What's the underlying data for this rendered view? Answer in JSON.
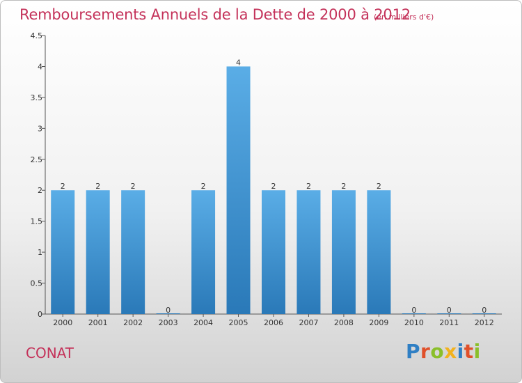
{
  "header": {
    "title": "Remboursements Annuels de la Dette de 2000 à 2012",
    "subtitle": "(en milliers d'€)"
  },
  "footer": {
    "location": "CONAT",
    "logo_text": "Proxiti",
    "logo_colors": [
      "#2f7fc4",
      "#e0502a",
      "#8abf2a",
      "#f2b21e",
      "#2f7fc4",
      "#e0502a",
      "#8abf2a"
    ]
  },
  "colors": {
    "bar_top": "#5aade6",
    "bar_bottom": "#2a79b8",
    "axis": "#555555",
    "grid": "#dddddd"
  },
  "chart_data": {
    "type": "bar",
    "categories": [
      "2000",
      "2001",
      "2002",
      "2003",
      "2004",
      "2005",
      "2006",
      "2007",
      "2008",
      "2009",
      "2010",
      "2011",
      "2012"
    ],
    "values": [
      2,
      2,
      2,
      0,
      2,
      4,
      2,
      2,
      2,
      2,
      0,
      0,
      0
    ],
    "data_labels": [
      "2",
      "2",
      "2",
      "0",
      "2",
      "4",
      "2",
      "2",
      "2",
      "2",
      "0",
      "0",
      "0"
    ],
    "yticks": [
      0,
      0.5,
      1,
      1.5,
      2,
      2.5,
      3,
      3.5,
      4,
      4.5
    ],
    "ytick_labels": [
      "0",
      "0.5",
      "1",
      "1.5",
      "2",
      "2.5",
      "3",
      "3.5",
      "4",
      "4.5"
    ],
    "ylim": [
      0,
      4.5
    ],
    "grid": false,
    "legend": "none"
  }
}
